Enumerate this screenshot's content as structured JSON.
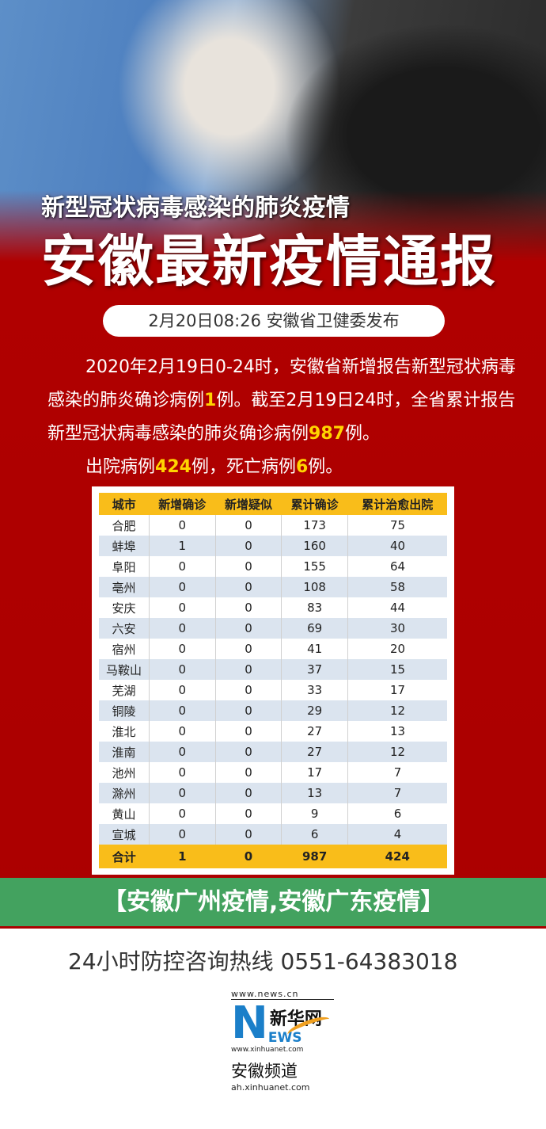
{
  "header": {
    "subtitle": "新型冠状病毒感染的肺炎疫情",
    "title": "安徽最新疫情通报",
    "release": "2月20日08:26  安徽省卫健委发布"
  },
  "paragraph": {
    "p1": "2020年2月19日0-24时，安徽省新增报告新型冠状病毒感染的肺炎确诊病例",
    "new_cases": "1",
    "p2": "例。截至2月19日24时，全省累计报告新型冠状病毒感染的肺炎确诊病例",
    "total_cases": "987",
    "p3": "例。",
    "p4": "出院病例",
    "recovered": "424",
    "p5": "例，死亡病例",
    "deaths": "6",
    "p6": "例。"
  },
  "table": {
    "headers": [
      "城市",
      "新增确诊",
      "新增疑似",
      "累计确诊",
      "累计治愈出院"
    ],
    "rows": [
      [
        "合肥",
        "0",
        "0",
        "173",
        "75"
      ],
      [
        "蚌埠",
        "1",
        "0",
        "160",
        "40"
      ],
      [
        "阜阳",
        "0",
        "0",
        "155",
        "64"
      ],
      [
        "亳州",
        "0",
        "0",
        "108",
        "58"
      ],
      [
        "安庆",
        "0",
        "0",
        "83",
        "44"
      ],
      [
        "六安",
        "0",
        "0",
        "69",
        "30"
      ],
      [
        "宿州",
        "0",
        "0",
        "41",
        "20"
      ],
      [
        "马鞍山",
        "0",
        "0",
        "37",
        "15"
      ],
      [
        "芜湖",
        "0",
        "0",
        "33",
        "17"
      ],
      [
        "铜陵",
        "0",
        "0",
        "29",
        "12"
      ],
      [
        "淮北",
        "0",
        "0",
        "27",
        "13"
      ],
      [
        "淮南",
        "0",
        "0",
        "27",
        "12"
      ],
      [
        "池州",
        "0",
        "0",
        "17",
        "7"
      ],
      [
        "滁州",
        "0",
        "0",
        "13",
        "7"
      ],
      [
        "黄山",
        "0",
        "0",
        "9",
        "6"
      ],
      [
        "宣城",
        "0",
        "0",
        "6",
        "4"
      ]
    ],
    "total": [
      "合计",
      "1",
      "0",
      "987",
      "424"
    ]
  },
  "banner": "【安徽广州疫情,安徽广东疫情】",
  "footer": {
    "hotline": "24小时防控咨询热线  0551-64383018",
    "logo_url1": "www.news.cn",
    "logo_cn": "新华网",
    "logo_n": "N",
    "logo_ews": "EWS",
    "logo_url2": "www.xinhuanet.com",
    "channel": "安徽频道",
    "channel_url": "ah.xinhuanet.com"
  },
  "colors": {
    "red": "#b00000",
    "yellow": "#f9bd1a",
    "banner_green": "#37b469",
    "highlight": "#ffd400"
  }
}
